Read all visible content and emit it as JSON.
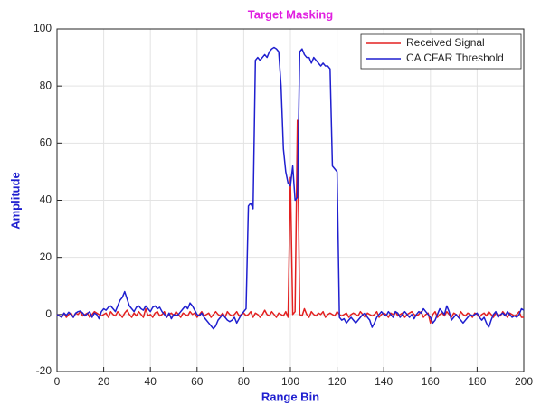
{
  "chart_data": {
    "type": "line",
    "title": "Target Masking",
    "title_color": "#e020e0",
    "xlabel": "Range Bin",
    "ylabel": "Amplitude",
    "label_color": "#1f1fcf",
    "x": [
      0,
      1,
      2,
      3,
      4,
      5,
      6,
      7,
      8,
      9,
      10,
      11,
      12,
      13,
      14,
      15,
      16,
      17,
      18,
      19,
      20,
      21,
      22,
      23,
      24,
      25,
      26,
      27,
      28,
      29,
      30,
      31,
      32,
      33,
      34,
      35,
      36,
      37,
      38,
      39,
      40,
      41,
      42,
      43,
      44,
      45,
      46,
      47,
      48,
      49,
      50,
      51,
      52,
      53,
      54,
      55,
      56,
      57,
      58,
      59,
      60,
      61,
      62,
      63,
      64,
      65,
      66,
      67,
      68,
      69,
      70,
      71,
      72,
      73,
      74,
      75,
      76,
      77,
      78,
      79,
      80,
      81,
      82,
      83,
      84,
      85,
      86,
      87,
      88,
      89,
      90,
      91,
      92,
      93,
      94,
      95,
      96,
      97,
      98,
      99,
      100,
      101,
      102,
      103,
      104,
      105,
      106,
      107,
      108,
      109,
      110,
      111,
      112,
      113,
      114,
      115,
      116,
      117,
      118,
      119,
      120,
      121,
      122,
      123,
      124,
      125,
      126,
      127,
      128,
      129,
      130,
      131,
      132,
      133,
      134,
      135,
      136,
      137,
      138,
      139,
      140,
      141,
      142,
      143,
      144,
      145,
      146,
      147,
      148,
      149,
      150,
      151,
      152,
      153,
      154,
      155,
      156,
      157,
      158,
      159,
      160,
      161,
      162,
      163,
      164,
      165,
      166,
      167,
      168,
      169,
      170,
      171,
      172,
      173,
      174,
      175,
      176,
      177,
      178,
      179,
      180,
      181,
      182,
      183,
      184,
      185,
      186,
      187,
      188,
      189,
      190,
      191,
      192,
      193,
      194,
      195,
      196,
      197,
      198,
      199,
      200
    ],
    "series": [
      {
        "name": "Received Signal",
        "color": "#e32020",
        "values": [
          0,
          -0.5,
          -1,
          0.5,
          -1,
          0,
          0.5,
          -1,
          0.5,
          0,
          1,
          -0.5,
          0,
          0.5,
          -1,
          0,
          1,
          0.5,
          0,
          -0.5,
          0,
          0.5,
          -1,
          1,
          0,
          -0.5,
          1,
          0,
          -1,
          0.5,
          1.5,
          0,
          -1,
          0.5,
          -0.5,
          1,
          0,
          -1,
          2,
          -0.5,
          0,
          -1,
          0.5,
          1,
          -0.5,
          0,
          1,
          -1,
          0,
          0.5,
          -0.5,
          1,
          0,
          -1,
          0.5,
          0,
          -0.5,
          1,
          0,
          0.5,
          -1,
          0,
          1,
          -0.5,
          0,
          0.5,
          -1,
          0,
          1,
          0,
          -0.5,
          0.5,
          -1,
          1,
          0,
          -0.5,
          0,
          1,
          -0.5,
          0,
          0.5,
          -0.5,
          0,
          1,
          -1,
          0.5,
          0,
          -1,
          0,
          1.5,
          0,
          -0.5,
          1,
          0,
          -1,
          0.5,
          0,
          -0.5,
          1,
          -1,
          48,
          0,
          1,
          68,
          0,
          -0.5,
          2,
          0,
          -1,
          1,
          0,
          -0.5,
          0.5,
          0,
          1,
          -1,
          0,
          0.5,
          0,
          -0.5,
          1,
          0,
          -0.5,
          0,
          0.5,
          -1,
          0,
          0.5,
          0,
          -0.5,
          1,
          0,
          -1,
          0.5,
          0,
          -0.5,
          0,
          1,
          -1,
          0,
          0.5,
          0,
          -1,
          0.5,
          0,
          1,
          -0.5,
          0,
          0.5,
          -1,
          0,
          0.5,
          1,
          0,
          -0.5,
          0,
          1,
          -1,
          0,
          0.5,
          -3,
          0,
          1,
          -1,
          0,
          0.5,
          -0.5,
          1,
          0,
          -1,
          0.5,
          0,
          -1,
          1,
          0,
          -0.5,
          0.5,
          0,
          -1,
          0.5,
          0,
          -1,
          0,
          0.5,
          -0.5,
          1,
          0,
          -1,
          0.5,
          0,
          -0.5,
          1,
          0,
          -1,
          0.5,
          0,
          -0.5,
          0,
          1,
          -1,
          -1
        ]
      },
      {
        "name": "CA CFAR Threshold",
        "color": "#1f1fcf",
        "values": [
          0,
          -0.5,
          -1,
          0.5,
          -0.3,
          0.8,
          0,
          -1,
          0.5,
          1,
          1.2,
          0.5,
          -0.5,
          0.3,
          1,
          -1,
          0.5,
          0,
          -1.5,
          1,
          2,
          1.5,
          2.5,
          3,
          2,
          1,
          3,
          5,
          6,
          8,
          5.5,
          3,
          2,
          1,
          2.5,
          3,
          2,
          1.5,
          3,
          2,
          1,
          2.5,
          3,
          2,
          2.5,
          1,
          0,
          -1,
          0.5,
          -1.5,
          0,
          -0.5,
          0,
          1,
          2,
          3,
          2,
          4,
          3,
          1.5,
          0,
          -0.5,
          0.5,
          -1,
          -2,
          -3,
          -4,
          -5,
          -4,
          -2,
          -1,
          0,
          -1,
          -2,
          -2.5,
          -2,
          -1,
          -3,
          -1.5,
          0,
          1,
          2,
          38,
          39,
          37,
          89,
          90,
          89,
          90,
          91,
          90,
          92,
          93,
          93.5,
          93,
          92,
          80,
          58,
          50,
          46,
          45,
          52,
          40,
          41,
          92,
          93,
          91,
          90,
          90,
          88,
          90,
          89,
          88,
          87,
          88,
          87,
          87,
          86,
          52,
          51,
          50,
          -1,
          -2,
          -1.5,
          -3,
          -2,
          -1,
          -2,
          -3,
          -2,
          -1,
          0,
          0.5,
          -1,
          -2,
          -4.5,
          -3,
          -1,
          0,
          1,
          0,
          -0.5,
          1,
          0,
          -1,
          1,
          0.5,
          -1,
          0,
          1,
          0,
          -1,
          0,
          -1.5,
          0,
          1,
          0.5,
          2,
          1,
          0,
          -1,
          -3,
          -2,
          0,
          2,
          1,
          0,
          3,
          1,
          -2,
          -1,
          0,
          -1,
          -2,
          -3,
          -2,
          -1,
          0,
          -0.5,
          0,
          0.5,
          -1,
          -2,
          -1,
          -3,
          -4.5,
          -2,
          0,
          1,
          -1,
          0,
          0.5,
          -0.5,
          1,
          0,
          -1,
          -0.5,
          -1,
          0,
          2,
          1.5
        ]
      }
    ],
    "xlim": [
      0,
      200
    ],
    "xticks": [
      0,
      20,
      40,
      60,
      80,
      100,
      120,
      140,
      160,
      180,
      200
    ],
    "ylim": [
      -20,
      100
    ],
    "yticks": [
      -20,
      0,
      20,
      40,
      60,
      80,
      100
    ],
    "grid": true,
    "legend": "northeast"
  }
}
